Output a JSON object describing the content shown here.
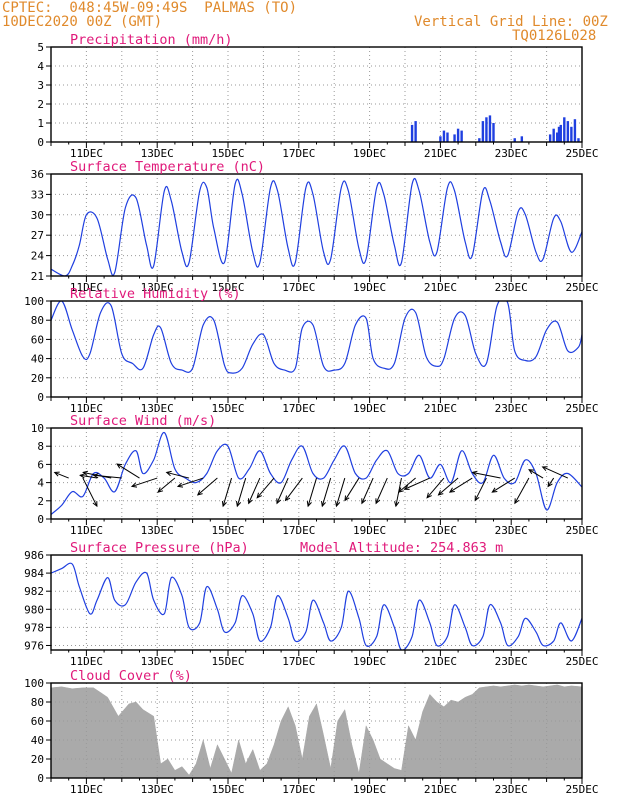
{
  "header": {
    "line1_left": "CPTEC:  048:45W-09:49S  PALMAS (TO)",
    "line2_left": "10DEC2020 00Z (GMT)",
    "line1_right": "Vertical Grid Line: 00Z",
    "line2_right": "TQ0126L028"
  },
  "colors": {
    "header": "#e08a2c",
    "title": "#e0197a",
    "series": "#1f3fe0",
    "cloud": "#aaaaaa",
    "grid": "#9a9a9a"
  },
  "x_tick_labels": [
    "11DEC",
    "13DEC",
    "15DEC",
    "17DEC",
    "19DEC",
    "21DEC",
    "23DEC",
    "25DEC"
  ],
  "chart_data": [
    {
      "id": "precip",
      "type": "bar",
      "title": "Precipitation (mm/h)",
      "ylim": [
        0,
        5
      ],
      "yticks": [
        0,
        1,
        2,
        3,
        4,
        5
      ],
      "grid": true,
      "series": [
        {
          "values": [
            [
              20.2,
              0.9
            ],
            [
              20.3,
              1.1
            ],
            [
              21.0,
              0.3
            ],
            [
              21.1,
              0.6
            ],
            [
              21.2,
              0.5
            ],
            [
              21.4,
              0.4
            ],
            [
              21.5,
              0.7
            ],
            [
              21.6,
              0.6
            ],
            [
              22.1,
              0.2
            ],
            [
              22.2,
              1.1
            ],
            [
              22.3,
              1.3
            ],
            [
              22.4,
              1.4
            ],
            [
              22.5,
              1.0
            ],
            [
              23.1,
              0.2
            ],
            [
              23.3,
              0.3
            ],
            [
              24.1,
              0.4
            ],
            [
              24.2,
              0.7
            ],
            [
              24.3,
              0.5
            ],
            [
              24.35,
              0.8
            ],
            [
              24.4,
              0.9
            ],
            [
              24.5,
              1.3
            ],
            [
              24.6,
              1.1
            ],
            [
              24.7,
              0.8
            ],
            [
              24.8,
              1.2
            ],
            [
              24.9,
              0.2
            ]
          ]
        }
      ]
    },
    {
      "id": "temp",
      "type": "line",
      "title": "Surface Temperature (nC)",
      "ylim": [
        21,
        36
      ],
      "yticks": [
        21,
        24,
        27,
        30,
        33,
        36
      ],
      "grid": true,
      "series": [
        {
          "x": [
            10.0,
            10.4,
            10.6,
            10.8,
            11.0,
            11.3,
            11.6,
            11.8,
            12.1,
            12.4,
            12.7,
            12.9,
            13.2,
            13.4,
            13.7,
            13.9,
            14.2,
            14.4,
            14.6,
            14.9,
            15.2,
            15.4,
            15.7,
            15.9,
            16.2,
            16.4,
            16.7,
            16.9,
            17.2,
            17.4,
            17.7,
            17.9,
            18.2,
            18.4,
            18.7,
            18.9,
            19.2,
            19.4,
            19.7,
            19.9,
            20.2,
            20.4,
            20.7,
            20.9,
            21.2,
            21.4,
            21.7,
            21.9,
            22.2,
            22.4,
            22.7,
            22.9,
            23.2,
            23.4,
            23.7,
            23.9,
            24.2,
            24.4,
            24.7,
            25.0
          ],
          "y": [
            22.0,
            21.0,
            22.5,
            25.5,
            30.0,
            29.5,
            23.5,
            21.5,
            31.0,
            32.5,
            25.5,
            22.5,
            33.5,
            32.0,
            24.5,
            23.0,
            33.5,
            34.0,
            28.0,
            23.0,
            34.5,
            33.0,
            24.5,
            23.0,
            34.0,
            33.5,
            25.0,
            23.0,
            34.0,
            33.0,
            24.5,
            23.5,
            34.0,
            33.5,
            25.0,
            23.5,
            34.0,
            33.0,
            25.5,
            23.0,
            34.5,
            33.5,
            26.0,
            24.5,
            34.0,
            33.5,
            26.0,
            24.0,
            33.5,
            32.0,
            26.0,
            24.0,
            30.5,
            30.0,
            24.5,
            23.5,
            29.5,
            29.0,
            24.5,
            27.5
          ]
        }
      ]
    },
    {
      "id": "rh",
      "type": "line",
      "title": "Relative Humidity (%)",
      "ylim": [
        0,
        100
      ],
      "yticks": [
        0,
        20,
        40,
        60,
        80,
        100
      ],
      "grid": true,
      "series": [
        {
          "x": [
            10.0,
            10.3,
            10.6,
            10.9,
            11.1,
            11.4,
            11.7,
            12.0,
            12.3,
            12.6,
            12.9,
            13.1,
            13.4,
            13.7,
            14.0,
            14.3,
            14.6,
            14.9,
            15.1,
            15.4,
            15.7,
            16.0,
            16.3,
            16.6,
            16.9,
            17.1,
            17.4,
            17.7,
            18.0,
            18.3,
            18.6,
            18.9,
            19.1,
            19.4,
            19.7,
            20.0,
            20.3,
            20.6,
            20.9,
            21.1,
            21.4,
            21.7,
            22.0,
            22.3,
            22.6,
            22.9,
            23.1,
            23.4,
            23.7,
            24.0,
            24.3,
            24.6,
            24.9,
            25.0
          ],
          "y": [
            80,
            100,
            70,
            42,
            45,
            88,
            95,
            45,
            35,
            30,
            65,
            72,
            35,
            28,
            30,
            75,
            80,
            33,
            25,
            30,
            55,
            65,
            35,
            28,
            30,
            72,
            75,
            32,
            28,
            35,
            75,
            82,
            40,
            30,
            35,
            82,
            88,
            42,
            32,
            40,
            82,
            85,
            45,
            35,
            95,
            98,
            48,
            38,
            42,
            70,
            78,
            48,
            52,
            65
          ]
        }
      ]
    },
    {
      "id": "wind",
      "type": "line",
      "title": "Surface Wind (m/s)",
      "ylim": [
        0,
        10
      ],
      "yticks": [
        0,
        2,
        4,
        6,
        8,
        10
      ],
      "grid": true,
      "series": [
        {
          "x": [
            10.0,
            10.3,
            10.6,
            10.9,
            11.2,
            11.5,
            11.8,
            12.1,
            12.4,
            12.6,
            12.9,
            13.2,
            13.5,
            13.8,
            14.1,
            14.4,
            14.7,
            15.0,
            15.3,
            15.6,
            15.9,
            16.2,
            16.5,
            16.8,
            17.1,
            17.4,
            17.7,
            18.0,
            18.3,
            18.6,
            18.9,
            19.2,
            19.5,
            19.8,
            20.1,
            20.4,
            20.7,
            21.0,
            21.3,
            21.6,
            21.9,
            22.2,
            22.5,
            22.8,
            23.1,
            23.4,
            23.7,
            24.0,
            24.3,
            24.6,
            25.0
          ],
          "y": [
            0.5,
            1.5,
            3.0,
            2.5,
            5.0,
            4.5,
            3.0,
            6.0,
            7.5,
            5.0,
            6.5,
            9.5,
            5.5,
            4.5,
            4.0,
            5.0,
            7.5,
            8.0,
            4.5,
            5.5,
            7.5,
            5.0,
            4.0,
            6.5,
            8.0,
            5.0,
            4.5,
            6.5,
            8.0,
            5.0,
            4.5,
            6.5,
            7.5,
            5.0,
            5.0,
            7.0,
            4.5,
            6.0,
            4.0,
            7.5,
            5.0,
            4.0,
            7.0,
            4.5,
            4.0,
            6.5,
            5.0,
            1.0,
            4.0,
            5.0,
            3.5
          ]
        }
      ],
      "vectors": [
        [
          10.5,
          -0.5,
          0.2
        ],
        [
          10.9,
          0.5,
          -1.0
        ],
        [
          11.3,
          -0.6,
          0.1
        ],
        [
          11.7,
          -1.0,
          0.2
        ],
        [
          12.0,
          -1.0,
          0.1
        ],
        [
          12.5,
          -0.8,
          0.5
        ],
        [
          13.0,
          -0.9,
          -0.3
        ],
        [
          13.5,
          -0.6,
          -0.5
        ],
        [
          13.9,
          -0.8,
          0.2
        ],
        [
          14.3,
          -0.9,
          -0.3
        ],
        [
          14.7,
          -0.7,
          -0.6
        ],
        [
          15.1,
          -0.3,
          -1.0
        ],
        [
          15.5,
          -0.3,
          -1.0
        ],
        [
          15.9,
          -0.4,
          -0.9
        ],
        [
          16.3,
          -0.6,
          -0.7
        ],
        [
          16.7,
          -0.4,
          -0.9
        ],
        [
          17.1,
          -0.6,
          -0.8
        ],
        [
          17.5,
          -0.3,
          -1.0
        ],
        [
          17.9,
          -0.3,
          -1.0
        ],
        [
          18.3,
          -0.3,
          -1.0
        ],
        [
          18.7,
          -0.5,
          -0.8
        ],
        [
          19.1,
          -0.4,
          -0.9
        ],
        [
          19.5,
          -0.4,
          -0.9
        ],
        [
          19.9,
          -0.2,
          -1.0
        ],
        [
          20.3,
          -0.6,
          -0.5
        ],
        [
          20.7,
          -0.9,
          -0.4
        ],
        [
          21.1,
          -0.6,
          -0.7
        ],
        [
          21.5,
          -0.7,
          -0.6
        ],
        [
          21.9,
          -0.8,
          -0.5
        ],
        [
          22.3,
          -0.4,
          -0.8
        ],
        [
          22.7,
          -1.0,
          0.2
        ],
        [
          23.1,
          -0.8,
          -0.5
        ],
        [
          23.5,
          -0.5,
          -0.9
        ],
        [
          23.9,
          -0.5,
          0.3
        ],
        [
          24.2,
          -0.2,
          -0.3
        ],
        [
          24.6,
          -0.9,
          0.4
        ]
      ]
    },
    {
      "id": "press",
      "type": "line",
      "title": "Surface Pressure (hPa)",
      "annotation": "Model Altitude: 254.863 m",
      "ylim": [
        975.5,
        986
      ],
      "yticks": [
        976,
        978,
        980,
        982,
        984,
        986
      ],
      "grid": true,
      "series": [
        {
          "x": [
            10.0,
            10.3,
            10.6,
            10.8,
            11.1,
            11.3,
            11.6,
            11.8,
            12.1,
            12.4,
            12.7,
            12.9,
            13.2,
            13.4,
            13.7,
            13.9,
            14.2,
            14.4,
            14.7,
            14.9,
            15.2,
            15.4,
            15.7,
            15.9,
            16.2,
            16.4,
            16.7,
            16.9,
            17.2,
            17.4,
            17.7,
            17.9,
            18.2,
            18.4,
            18.7,
            18.9,
            19.2,
            19.4,
            19.7,
            19.9,
            20.2,
            20.4,
            20.7,
            20.9,
            21.2,
            21.4,
            21.7,
            21.9,
            22.2,
            22.4,
            22.7,
            22.9,
            23.2,
            23.4,
            23.7,
            23.9,
            24.2,
            24.4,
            24.7,
            25.0
          ],
          "y": [
            984.0,
            984.5,
            985.0,
            982.5,
            979.5,
            981.0,
            983.5,
            981.0,
            980.5,
            983.0,
            984.0,
            981.0,
            979.5,
            983.5,
            981.5,
            978.0,
            978.5,
            982.5,
            980.0,
            977.5,
            978.5,
            981.5,
            979.5,
            976.5,
            978.0,
            981.5,
            979.0,
            976.5,
            977.5,
            981.0,
            978.5,
            976.5,
            978.0,
            982.0,
            979.0,
            976.0,
            977.0,
            980.5,
            978.0,
            975.5,
            977.0,
            981.0,
            978.5,
            976.0,
            977.0,
            980.5,
            978.0,
            976.0,
            977.0,
            980.5,
            978.5,
            976.0,
            977.0,
            979.0,
            977.5,
            976.0,
            976.5,
            978.5,
            976.5,
            979.0
          ]
        }
      ]
    },
    {
      "id": "cloud",
      "type": "area",
      "title": "Cloud Cover (%)",
      "ylim": [
        0,
        100
      ],
      "yticks": [
        0,
        20,
        40,
        60,
        80,
        100
      ],
      "grid": true,
      "series": [
        {
          "x": [
            10.0,
            10.3,
            10.6,
            10.9,
            11.2,
            11.4,
            11.6,
            11.9,
            12.2,
            12.4,
            12.6,
            12.9,
            13.1,
            13.3,
            13.5,
            13.7,
            13.9,
            14.1,
            14.3,
            14.5,
            14.7,
            14.9,
            15.1,
            15.3,
            15.5,
            15.7,
            15.9,
            16.1,
            16.3,
            16.5,
            16.7,
            16.9,
            17.1,
            17.3,
            17.5,
            17.7,
            17.9,
            18.1,
            18.3,
            18.5,
            18.7,
            18.9,
            19.1,
            19.3,
            19.5,
            19.7,
            19.9,
            20.1,
            20.3,
            20.5,
            20.7,
            20.9,
            21.1,
            21.3,
            21.5,
            21.7,
            21.9,
            22.1,
            22.3,
            22.5,
            22.7,
            22.9,
            23.1,
            23.3,
            23.5,
            23.7,
            23.9,
            24.1,
            24.3,
            24.5,
            24.7,
            25.0
          ],
          "y": [
            95,
            96,
            94,
            95,
            95,
            90,
            85,
            65,
            78,
            80,
            72,
            65,
            15,
            20,
            8,
            12,
            3,
            15,
            40,
            10,
            35,
            20,
            5,
            40,
            15,
            30,
            8,
            15,
            35,
            60,
            75,
            55,
            20,
            65,
            78,
            45,
            10,
            60,
            72,
            35,
            5,
            55,
            40,
            20,
            15,
            10,
            8,
            55,
            40,
            70,
            88,
            80,
            75,
            82,
            80,
            85,
            88,
            95,
            96,
            97,
            96,
            97,
            98,
            97,
            98,
            97,
            96,
            97,
            98,
            96,
            97,
            96
          ]
        }
      ]
    }
  ]
}
